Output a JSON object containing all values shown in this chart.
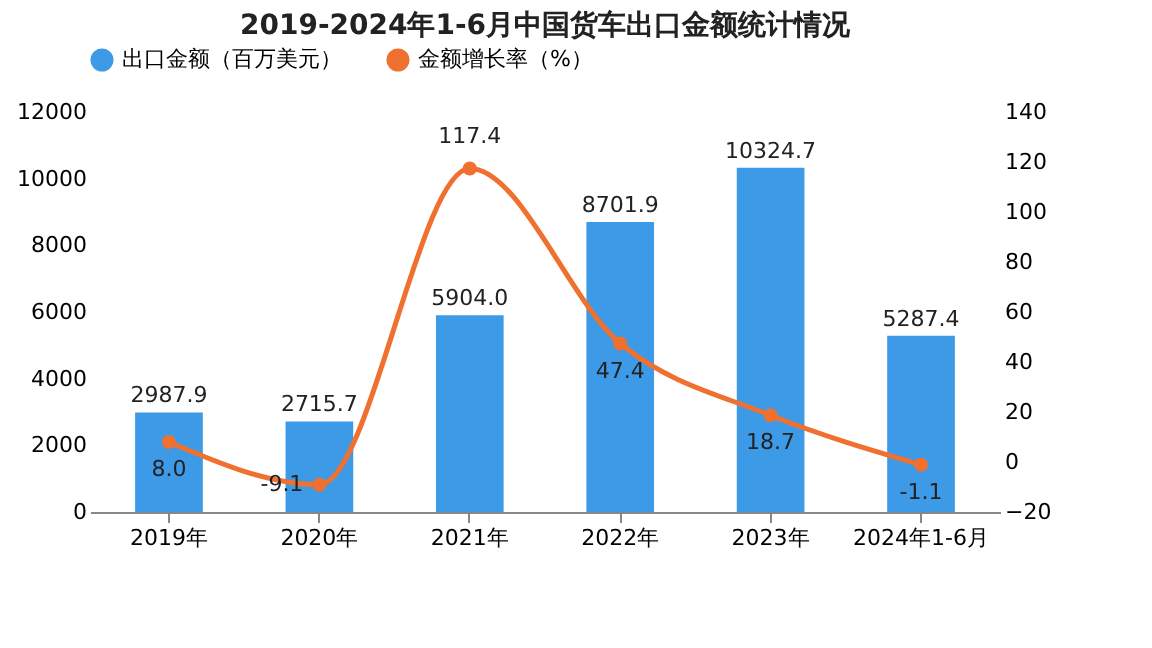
{
  "chart_data": {
    "type": "bar",
    "title": "2019-2024年1-6月中国货车出口金额统计情况",
    "categories": [
      "2019年",
      "2020年",
      "2021年",
      "2022年",
      "2023年",
      "2024年1-6月"
    ],
    "series": [
      {
        "name": "出口金额（百万美元）",
        "color": "#3c9ae6",
        "values": [
          2987.9,
          2715.7,
          5904.0,
          8701.9,
          10324.7,
          5287.4
        ],
        "value_labels": [
          "2987.9",
          "2715.7",
          "5904.0",
          "8701.9",
          "10324.7",
          "5287.4"
        ]
      },
      {
        "name": "金额增长率（%）",
        "type": "line",
        "axis": "y2",
        "color": "#f07030",
        "marker": "circle",
        "values": [
          8.0,
          -9.1,
          117.4,
          47.4,
          18.7,
          -1.1
        ],
        "value_labels": [
          "8.0",
          "-9.1",
          "117.4",
          "47.4",
          "18.7",
          "-1.1"
        ]
      }
    ],
    "ylim": [
      0,
      12000
    ],
    "yticks": [
      0,
      2000,
      4000,
      6000,
      8000,
      10000,
      12000
    ],
    "y2lim": [
      -20,
      140
    ],
    "y2ticks": [
      -20,
      0,
      20,
      40,
      60,
      80,
      100,
      120,
      140
    ],
    "legend": "top",
    "grid": false
  }
}
